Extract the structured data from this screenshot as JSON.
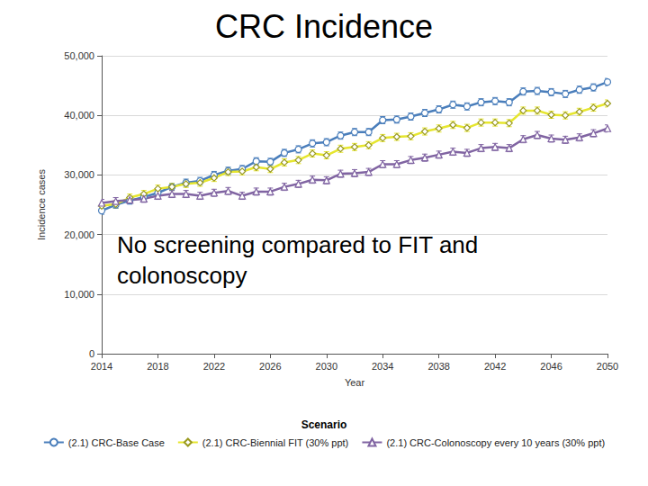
{
  "chart_data": {
    "type": "line",
    "title": "CRC Incidence",
    "annotations": [
      "No screening compared to FIT and colonoscopy"
    ],
    "x_label": "Year",
    "y_label": "Incidence cases",
    "legend_title": "Scenario",
    "legend": "bottom",
    "grid": true,
    "x": [
      2014,
      2015,
      2016,
      2017,
      2018,
      2019,
      2020,
      2021,
      2022,
      2023,
      2024,
      2025,
      2026,
      2027,
      2028,
      2029,
      2030,
      2031,
      2032,
      2033,
      2034,
      2035,
      2036,
      2037,
      2038,
      2039,
      2040,
      2041,
      2042,
      2043,
      2044,
      2045,
      2046,
      2047,
      2048,
      2049,
      2050
    ],
    "xlim": [
      2014,
      2050
    ],
    "xticks": [
      2014,
      2018,
      2022,
      2026,
      2030,
      2034,
      2038,
      2042,
      2046,
      2050
    ],
    "ylim": [
      0,
      50000
    ],
    "yticks": [
      0,
      {
        "value": 10000,
        "label": "10,000"
      },
      {
        "value": 20000,
        "label": "20,000"
      },
      {
        "value": 30000,
        "label": "30,000"
      },
      {
        "value": 40000,
        "label": "40,000"
      },
      {
        "value": 50000,
        "label": "50,000"
      }
    ],
    "series": [
      {
        "name": "(2.1) CRC-Base Case",
        "color": "#4a7ebb",
        "marker": "circle",
        "line_style": "solid",
        "values": [
          24000,
          25000,
          25700,
          26300,
          27000,
          28000,
          28700,
          29000,
          30000,
          30700,
          31000,
          32300,
          32200,
          33700,
          34300,
          35300,
          35500,
          36600,
          37200,
          37200,
          39200,
          39300,
          39800,
          40400,
          41000,
          41800,
          41500,
          42200,
          42400,
          42200,
          44000,
          44100,
          43900,
          43600,
          44300,
          44700,
          45600
        ],
        "errors": [
          600,
          600,
          600,
          600,
          600,
          600,
          600,
          600,
          600,
          600,
          600,
          600,
          600,
          600,
          600,
          600,
          600,
          600,
          600,
          600,
          600,
          600,
          600,
          600,
          600,
          600,
          600,
          600,
          600,
          600,
          600,
          600,
          600,
          600,
          600,
          600,
          600
        ]
      },
      {
        "name": "(2.1) CRC-Biennial FIT (30% ppt)",
        "color": "#e6e62e",
        "marker": "diamond",
        "line_style": "solid",
        "values": [
          24800,
          25100,
          26200,
          26800,
          27700,
          28000,
          28500,
          28700,
          29500,
          30500,
          30600,
          31300,
          31000,
          32100,
          32500,
          33600,
          33300,
          34400,
          34700,
          35000,
          36200,
          36400,
          36500,
          37300,
          37800,
          38400,
          37900,
          38800,
          38800,
          38700,
          40800,
          40800,
          40100,
          40000,
          40600,
          41300,
          42000
        ],
        "errors": [
          600,
          600,
          600,
          600,
          600,
          600,
          600,
          600,
          600,
          600,
          600,
          600,
          600,
          600,
          600,
          600,
          600,
          600,
          600,
          600,
          600,
          600,
          600,
          600,
          600,
          600,
          600,
          600,
          600,
          600,
          600,
          600,
          600,
          600,
          600,
          600,
          600
        ]
      },
      {
        "name": "(2.1) CRC-Colonoscopy every 10 years (30% ppt)",
        "color": "#8064a2",
        "marker": "triangle",
        "line_style": "solid",
        "values": [
          25300,
          25600,
          25800,
          26000,
          26500,
          26800,
          26800,
          26500,
          27000,
          27300,
          26500,
          27200,
          27200,
          28000,
          28500,
          29200,
          29100,
          30200,
          30300,
          30500,
          31800,
          31800,
          32500,
          32900,
          33400,
          33900,
          33700,
          34500,
          34700,
          34500,
          36000,
          36700,
          36100,
          35900,
          36300,
          37000,
          37800
        ],
        "errors": [
          600,
          600,
          600,
          600,
          600,
          600,
          600,
          600,
          600,
          600,
          600,
          600,
          600,
          600,
          600,
          600,
          600,
          600,
          600,
          600,
          600,
          600,
          600,
          600,
          600,
          600,
          600,
          600,
          600,
          600,
          600,
          600,
          600,
          600,
          600,
          600,
          600
        ]
      }
    ]
  }
}
